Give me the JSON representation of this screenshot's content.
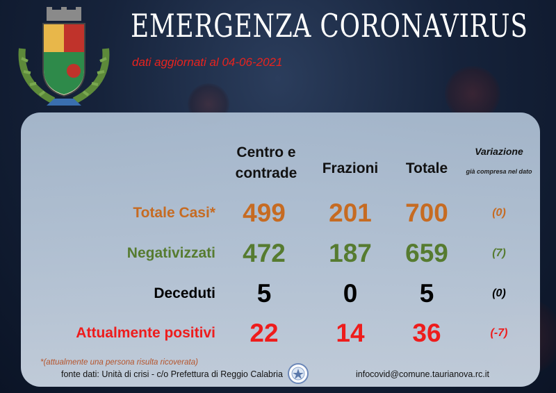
{
  "header": {
    "title": "EMERGENZA CORONAVIRUS",
    "subtitle": "dati aggiornati al 04-06-2021"
  },
  "columns": {
    "c1": "Centro e contrade",
    "c2": "Frazioni",
    "c3": "Totale",
    "variation_title": "Variazione",
    "variation_note": "già compresa nel dato"
  },
  "rows": [
    {
      "label": "Totale Casi*",
      "centro": "499",
      "frazioni": "201",
      "totale": "700",
      "variazione": "(0)"
    },
    {
      "label": "Negativizzati",
      "centro": "472",
      "frazioni": "187",
      "totale": "659",
      "variazione": "(7)"
    },
    {
      "label": "Deceduti",
      "centro": "5",
      "frazioni": "0",
      "totale": "5",
      "variazione": "(0)"
    },
    {
      "label": "Attualmente positivi",
      "centro": "22",
      "frazioni": "14",
      "totale": "36",
      "variazione": "(-7)"
    }
  ],
  "footer": {
    "footnote": "*(attualmente una persona risulta ricoverata)",
    "source": "fonte dati: Unità di crisi - c/o Prefettura di Reggio Calabria",
    "email": "infocovid@comune.taurianova.rc.it"
  },
  "colors": {
    "title": "#ffffff",
    "subtitle": "#e8231e",
    "totale_casi": "#c66b22",
    "negativizzati": "#567b30",
    "deceduti": "#000000",
    "positivi": "#ee1c1c"
  },
  "icons": {
    "crest": "municipal-crest-icon",
    "seal": "prefettura-seal-icon"
  }
}
